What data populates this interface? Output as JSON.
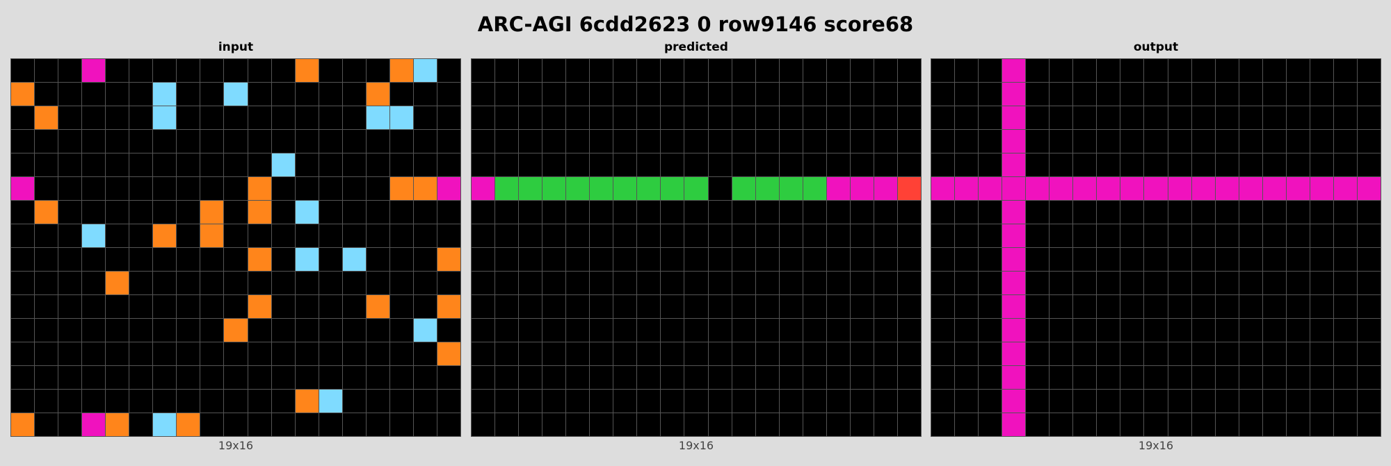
{
  "title": "ARC-AGI 6cdd2623 0 row9146 score68",
  "palette": {
    "0": "#000000",
    "1": "#0074d9",
    "2": "#ff4136",
    "3": "#2ecc40",
    "4": "#ffdc00",
    "5": "#aaaaaa",
    "6": "#f012be",
    "7": "#ff851b",
    "8": "#7fdbff",
    "9": "#870c25"
  },
  "panels": [
    {
      "label": "input",
      "dims": "19x16",
      "grid": [
        [
          0,
          0,
          0,
          6,
          0,
          0,
          0,
          0,
          0,
          0,
          0,
          0,
          7,
          0,
          0,
          0,
          7,
          8,
          0
        ],
        [
          7,
          0,
          0,
          0,
          0,
          0,
          8,
          0,
          0,
          8,
          0,
          0,
          0,
          0,
          0,
          7,
          0,
          0,
          0
        ],
        [
          0,
          7,
          0,
          0,
          0,
          0,
          8,
          0,
          0,
          0,
          0,
          0,
          0,
          0,
          0,
          8,
          8,
          0,
          0
        ],
        [
          0,
          0,
          0,
          0,
          0,
          0,
          0,
          0,
          0,
          0,
          0,
          0,
          0,
          0,
          0,
          0,
          0,
          0,
          0
        ],
        [
          0,
          0,
          0,
          0,
          0,
          0,
          0,
          0,
          0,
          0,
          0,
          8,
          0,
          0,
          0,
          0,
          0,
          0,
          0
        ],
        [
          6,
          0,
          0,
          0,
          0,
          0,
          0,
          0,
          0,
          0,
          7,
          0,
          0,
          0,
          0,
          0,
          7,
          7,
          6
        ],
        [
          0,
          7,
          0,
          0,
          0,
          0,
          0,
          0,
          7,
          0,
          7,
          0,
          8,
          0,
          0,
          0,
          0,
          0,
          0
        ],
        [
          0,
          0,
          0,
          8,
          0,
          0,
          7,
          0,
          7,
          0,
          0,
          0,
          0,
          0,
          0,
          0,
          0,
          0,
          0
        ],
        [
          0,
          0,
          0,
          0,
          0,
          0,
          0,
          0,
          0,
          0,
          7,
          0,
          8,
          0,
          8,
          0,
          0,
          0,
          7
        ],
        [
          0,
          0,
          0,
          0,
          7,
          0,
          0,
          0,
          0,
          0,
          0,
          0,
          0,
          0,
          0,
          0,
          0,
          0,
          0
        ],
        [
          0,
          0,
          0,
          0,
          0,
          0,
          0,
          0,
          0,
          0,
          7,
          0,
          0,
          0,
          0,
          7,
          0,
          0,
          7
        ],
        [
          0,
          0,
          0,
          0,
          0,
          0,
          0,
          0,
          0,
          7,
          0,
          0,
          0,
          0,
          0,
          0,
          0,
          8,
          0
        ],
        [
          0,
          0,
          0,
          0,
          0,
          0,
          0,
          0,
          0,
          0,
          0,
          0,
          0,
          0,
          0,
          0,
          0,
          0,
          7
        ],
        [
          0,
          0,
          0,
          0,
          0,
          0,
          0,
          0,
          0,
          0,
          0,
          0,
          0,
          0,
          0,
          0,
          0,
          0,
          0
        ],
        [
          0,
          0,
          0,
          0,
          0,
          0,
          0,
          0,
          0,
          0,
          0,
          0,
          7,
          8,
          0,
          0,
          0,
          0,
          0
        ],
        [
          7,
          0,
          0,
          6,
          7,
          0,
          8,
          7,
          0,
          0,
          0,
          0,
          0,
          0,
          0,
          0,
          0,
          0,
          0
        ]
      ]
    },
    {
      "label": "predicted",
      "dims": "19x16",
      "grid": [
        [
          0,
          0,
          0,
          0,
          0,
          0,
          0,
          0,
          0,
          0,
          0,
          0,
          0,
          0,
          0,
          0,
          0,
          0,
          0
        ],
        [
          0,
          0,
          0,
          0,
          0,
          0,
          0,
          0,
          0,
          0,
          0,
          0,
          0,
          0,
          0,
          0,
          0,
          0,
          0
        ],
        [
          0,
          0,
          0,
          0,
          0,
          0,
          0,
          0,
          0,
          0,
          0,
          0,
          0,
          0,
          0,
          0,
          0,
          0,
          0
        ],
        [
          0,
          0,
          0,
          0,
          0,
          0,
          0,
          0,
          0,
          0,
          0,
          0,
          0,
          0,
          0,
          0,
          0,
          0,
          0
        ],
        [
          0,
          0,
          0,
          0,
          0,
          0,
          0,
          0,
          0,
          0,
          0,
          0,
          0,
          0,
          0,
          0,
          0,
          0,
          0
        ],
        [
          6,
          3,
          3,
          3,
          3,
          3,
          3,
          3,
          3,
          3,
          0,
          3,
          3,
          3,
          3,
          6,
          6,
          6,
          2
        ],
        [
          0,
          0,
          0,
          0,
          0,
          0,
          0,
          0,
          0,
          0,
          0,
          0,
          0,
          0,
          0,
          0,
          0,
          0,
          0
        ],
        [
          0,
          0,
          0,
          0,
          0,
          0,
          0,
          0,
          0,
          0,
          0,
          0,
          0,
          0,
          0,
          0,
          0,
          0,
          0
        ],
        [
          0,
          0,
          0,
          0,
          0,
          0,
          0,
          0,
          0,
          0,
          0,
          0,
          0,
          0,
          0,
          0,
          0,
          0,
          0
        ],
        [
          0,
          0,
          0,
          0,
          0,
          0,
          0,
          0,
          0,
          0,
          0,
          0,
          0,
          0,
          0,
          0,
          0,
          0,
          0
        ],
        [
          0,
          0,
          0,
          0,
          0,
          0,
          0,
          0,
          0,
          0,
          0,
          0,
          0,
          0,
          0,
          0,
          0,
          0,
          0
        ],
        [
          0,
          0,
          0,
          0,
          0,
          0,
          0,
          0,
          0,
          0,
          0,
          0,
          0,
          0,
          0,
          0,
          0,
          0,
          0
        ],
        [
          0,
          0,
          0,
          0,
          0,
          0,
          0,
          0,
          0,
          0,
          0,
          0,
          0,
          0,
          0,
          0,
          0,
          0,
          0
        ],
        [
          0,
          0,
          0,
          0,
          0,
          0,
          0,
          0,
          0,
          0,
          0,
          0,
          0,
          0,
          0,
          0,
          0,
          0,
          0
        ],
        [
          0,
          0,
          0,
          0,
          0,
          0,
          0,
          0,
          0,
          0,
          0,
          0,
          0,
          0,
          0,
          0,
          0,
          0,
          0
        ],
        [
          0,
          0,
          0,
          0,
          0,
          0,
          0,
          0,
          0,
          0,
          0,
          0,
          0,
          0,
          0,
          0,
          0,
          0,
          0
        ]
      ]
    },
    {
      "label": "output",
      "dims": "19x16",
      "grid": [
        [
          0,
          0,
          0,
          6,
          0,
          0,
          0,
          0,
          0,
          0,
          0,
          0,
          0,
          0,
          0,
          0,
          0,
          0,
          0
        ],
        [
          0,
          0,
          0,
          6,
          0,
          0,
          0,
          0,
          0,
          0,
          0,
          0,
          0,
          0,
          0,
          0,
          0,
          0,
          0
        ],
        [
          0,
          0,
          0,
          6,
          0,
          0,
          0,
          0,
          0,
          0,
          0,
          0,
          0,
          0,
          0,
          0,
          0,
          0,
          0
        ],
        [
          0,
          0,
          0,
          6,
          0,
          0,
          0,
          0,
          0,
          0,
          0,
          0,
          0,
          0,
          0,
          0,
          0,
          0,
          0
        ],
        [
          0,
          0,
          0,
          6,
          0,
          0,
          0,
          0,
          0,
          0,
          0,
          0,
          0,
          0,
          0,
          0,
          0,
          0,
          0
        ],
        [
          6,
          6,
          6,
          6,
          6,
          6,
          6,
          6,
          6,
          6,
          6,
          6,
          6,
          6,
          6,
          6,
          6,
          6,
          6
        ],
        [
          0,
          0,
          0,
          6,
          0,
          0,
          0,
          0,
          0,
          0,
          0,
          0,
          0,
          0,
          0,
          0,
          0,
          0,
          0
        ],
        [
          0,
          0,
          0,
          6,
          0,
          0,
          0,
          0,
          0,
          0,
          0,
          0,
          0,
          0,
          0,
          0,
          0,
          0,
          0
        ],
        [
          0,
          0,
          0,
          6,
          0,
          0,
          0,
          0,
          0,
          0,
          0,
          0,
          0,
          0,
          0,
          0,
          0,
          0,
          0
        ],
        [
          0,
          0,
          0,
          6,
          0,
          0,
          0,
          0,
          0,
          0,
          0,
          0,
          0,
          0,
          0,
          0,
          0,
          0,
          0
        ],
        [
          0,
          0,
          0,
          6,
          0,
          0,
          0,
          0,
          0,
          0,
          0,
          0,
          0,
          0,
          0,
          0,
          0,
          0,
          0
        ],
        [
          0,
          0,
          0,
          6,
          0,
          0,
          0,
          0,
          0,
          0,
          0,
          0,
          0,
          0,
          0,
          0,
          0,
          0,
          0
        ],
        [
          0,
          0,
          0,
          6,
          0,
          0,
          0,
          0,
          0,
          0,
          0,
          0,
          0,
          0,
          0,
          0,
          0,
          0,
          0
        ],
        [
          0,
          0,
          0,
          6,
          0,
          0,
          0,
          0,
          0,
          0,
          0,
          0,
          0,
          0,
          0,
          0,
          0,
          0,
          0
        ],
        [
          0,
          0,
          0,
          6,
          0,
          0,
          0,
          0,
          0,
          0,
          0,
          0,
          0,
          0,
          0,
          0,
          0,
          0,
          0
        ],
        [
          0,
          0,
          0,
          6,
          0,
          0,
          0,
          0,
          0,
          0,
          0,
          0,
          0,
          0,
          0,
          0,
          0,
          0,
          0
        ]
      ]
    }
  ]
}
